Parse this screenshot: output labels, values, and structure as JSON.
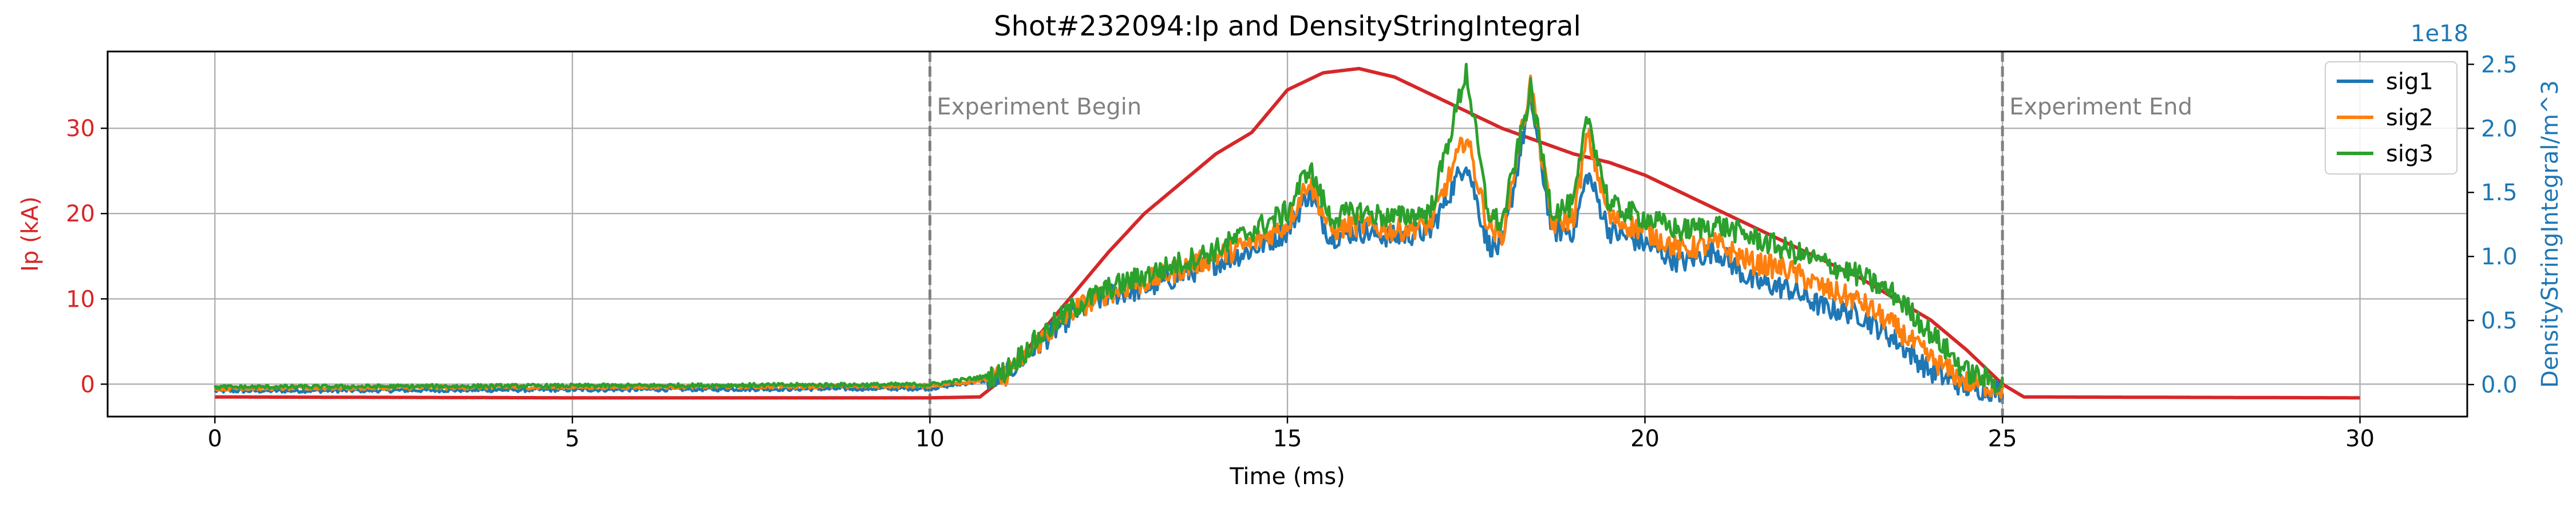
{
  "chart_data": {
    "type": "line",
    "title": "Shot#232094:Ip and DensityStringIntegral",
    "xlabel": "Time (ms)",
    "ylabel_left": "Ip (kA)",
    "ylabel_right": "DensityStringIntegral/m^3",
    "right_axis_offset_text": "1e18",
    "xlim": [
      -1.5,
      31.5
    ],
    "ylim_left": [
      -3.8,
      39
    ],
    "ylim_right": [
      -0.25,
      2.6
    ],
    "xticks": [
      0,
      5,
      10,
      15,
      20,
      25,
      30
    ],
    "yticks_left": [
      0,
      10,
      20,
      30
    ],
    "yticks_right": [
      0.0,
      0.5,
      1.0,
      1.5,
      2.0,
      2.5
    ],
    "grid": true,
    "legend_position": "top-right",
    "annotations": [
      {
        "x": 10,
        "text": "Experiment Begin"
      },
      {
        "x": 25,
        "text": "Experiment End"
      }
    ],
    "ip_series": {
      "name": "Ip",
      "color": "#d62728",
      "x": [
        0,
        5,
        10,
        10.7,
        11,
        11.5,
        12,
        12.5,
        13,
        13.5,
        14,
        14.5,
        15,
        15.5,
        16,
        16.5,
        17,
        17.5,
        18,
        18.5,
        19,
        19.5,
        20,
        20.5,
        21,
        21.5,
        22,
        22.5,
        23,
        23.5,
        24,
        24.5,
        25,
        25.3,
        30
      ],
      "values": [
        -1.5,
        -1.6,
        -1.6,
        -1.5,
        0.5,
        5.5,
        10.5,
        15.5,
        20,
        23.5,
        27,
        29.5,
        34.5,
        36.5,
        37,
        36,
        34,
        32,
        30,
        28.5,
        27,
        26,
        24.5,
        22.5,
        20.5,
        18.5,
        16.5,
        14.5,
        12.5,
        10,
        7.5,
        4,
        0,
        -1.5,
        -1.6
      ]
    },
    "density_series": [
      {
        "name": "sig1",
        "color": "#1f77b4",
        "x": [
          0,
          10,
          11,
          11.5,
          12,
          12.5,
          13,
          13.5,
          14,
          14.5,
          15,
          15.3,
          15.6,
          16,
          16.5,
          17,
          17.5,
          17.8,
          18,
          18.4,
          18.7,
          19,
          19.2,
          19.5,
          20,
          20.5,
          21,
          21.5,
          22,
          22.5,
          23,
          23.5,
          24,
          24.5,
          25
        ],
        "values": [
          -0.05,
          -0.03,
          0.05,
          0.3,
          0.55,
          0.7,
          0.75,
          0.85,
          0.95,
          1.05,
          1.2,
          1.5,
          1.15,
          1.2,
          1.15,
          1.2,
          1.75,
          1.1,
          1.05,
          2.25,
          1.2,
          1.2,
          1.65,
          1.2,
          1.1,
          0.95,
          1.05,
          0.8,
          0.75,
          0.6,
          0.55,
          0.35,
          0.1,
          -0.02,
          -0.05
        ]
      },
      {
        "name": "sig2",
        "color": "#ff7f0e",
        "x": [
          0,
          10,
          11,
          11.5,
          12,
          12.5,
          13,
          13.5,
          14,
          14.5,
          15,
          15.3,
          15.6,
          16,
          16.5,
          17,
          17.5,
          17.8,
          18,
          18.4,
          18.7,
          19,
          19.2,
          19.5,
          20,
          20.5,
          21,
          21.5,
          22,
          22.5,
          23,
          23.5,
          24,
          24.5,
          25
        ],
        "values": [
          -0.03,
          -0.01,
          0.05,
          0.32,
          0.58,
          0.72,
          0.8,
          0.9,
          1.0,
          1.1,
          1.25,
          1.6,
          1.2,
          1.25,
          1.2,
          1.25,
          1.95,
          1.25,
          1.15,
          2.35,
          1.25,
          1.3,
          1.95,
          1.3,
          1.2,
          1.05,
          1.1,
          0.95,
          0.9,
          0.75,
          0.65,
          0.45,
          0.2,
          0.02,
          -0.03
        ]
      },
      {
        "name": "sig3",
        "color": "#2ca02c",
        "x": [
          0,
          10,
          11,
          11.5,
          12,
          12.5,
          13,
          13.5,
          14,
          14.5,
          15,
          15.3,
          15.6,
          16,
          16.5,
          17,
          17.5,
          17.8,
          18,
          18.4,
          18.7,
          19,
          19.2,
          19.5,
          20,
          20.5,
          21,
          21.5,
          22,
          22.5,
          23,
          23.5,
          24,
          24.5,
          25
        ],
        "values": [
          -0.02,
          0.0,
          0.08,
          0.35,
          0.6,
          0.75,
          0.85,
          0.95,
          1.05,
          1.2,
          1.35,
          1.7,
          1.3,
          1.35,
          1.3,
          1.35,
          2.45,
          1.35,
          1.25,
          2.3,
          1.35,
          1.4,
          2.1,
          1.4,
          1.3,
          1.2,
          1.25,
          1.15,
          1.05,
          0.95,
          0.85,
          0.7,
          0.4,
          0.1,
          0.0
        ]
      }
    ]
  }
}
